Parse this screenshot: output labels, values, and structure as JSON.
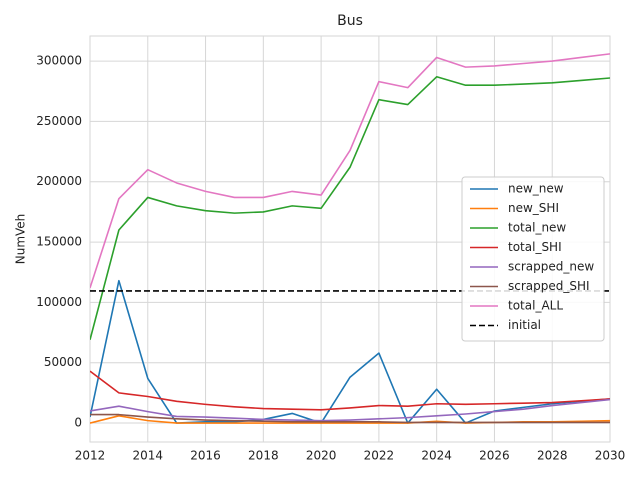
{
  "chart_data": {
    "type": "line",
    "title": "Bus",
    "y_label": "NumVeh",
    "x": [
      2012,
      2013,
      2014,
      2015,
      2016,
      2017,
      2018,
      2019,
      2020,
      2021,
      2022,
      2023,
      2024,
      2025,
      2026,
      2027,
      2028,
      2029,
      2030
    ],
    "series": [
      {
        "name": "new_new",
        "color": "#1f77b4",
        "values": [
          5000,
          118000,
          37000,
          0,
          1000,
          1000,
          3000,
          8000,
          0,
          38000,
          58000,
          0,
          28000,
          0,
          10000,
          13000,
          16000,
          18000,
          20000
        ]
      },
      {
        "name": "new_SHI",
        "color": "#ff7f0e",
        "values": [
          0,
          6000,
          2000,
          0,
          0,
          0,
          0,
          0,
          0,
          0,
          0,
          0,
          1500,
          0,
          500,
          1000,
          1000,
          1500,
          2000
        ]
      },
      {
        "name": "total_new",
        "color": "#2ca02c",
        "values": [
          69000,
          160000,
          187000,
          180000,
          176000,
          174000,
          175000,
          180000,
          178000,
          212000,
          268000,
          264000,
          287000,
          280000,
          280000,
          281000,
          282000,
          284000,
          286000
        ]
      },
      {
        "name": "total_SHI",
        "color": "#d62728",
        "values": [
          43000,
          25000,
          22000,
          18000,
          15500,
          13500,
          12000,
          11500,
          11000,
          12500,
          14500,
          14000,
          16000,
          15500,
          16000,
          16500,
          17000,
          18500,
          20000
        ]
      },
      {
        "name": "scrapped_new",
        "color": "#9467bd",
        "values": [
          10000,
          14000,
          9500,
          5500,
          5000,
          4000,
          3000,
          2500,
          2000,
          2500,
          3500,
          4500,
          6000,
          7500,
          9500,
          11500,
          14500,
          17000,
          19500
        ]
      },
      {
        "name": "scrapped_SHI",
        "color": "#8c564b",
        "values": [
          7000,
          7000,
          5000,
          3500,
          2500,
          2000,
          1500,
          1000,
          1000,
          1000,
          1000,
          500,
          500,
          500,
          500,
          500,
          500,
          500,
          500
        ]
      },
      {
        "name": "total_ALL",
        "color": "#e377c2",
        "values": [
          112000,
          186000,
          210000,
          199000,
          192000,
          187000,
          187000,
          192000,
          189000,
          226000,
          283000,
          278000,
          303000,
          295000,
          296000,
          298000,
          300000,
          303000,
          306000
        ]
      }
    ],
    "reference_line": {
      "name": "initial",
      "value": 109500,
      "color": "#000000"
    },
    "xlim": [
      2012,
      2030
    ],
    "xticks": [
      2012,
      2014,
      2016,
      2018,
      2020,
      2022,
      2024,
      2026,
      2028,
      2030
    ],
    "ylim": [
      -15700,
      320800
    ],
    "yticks": [
      0,
      50000,
      100000,
      150000,
      200000,
      250000,
      300000
    ],
    "grid": true,
    "legend": "right"
  }
}
